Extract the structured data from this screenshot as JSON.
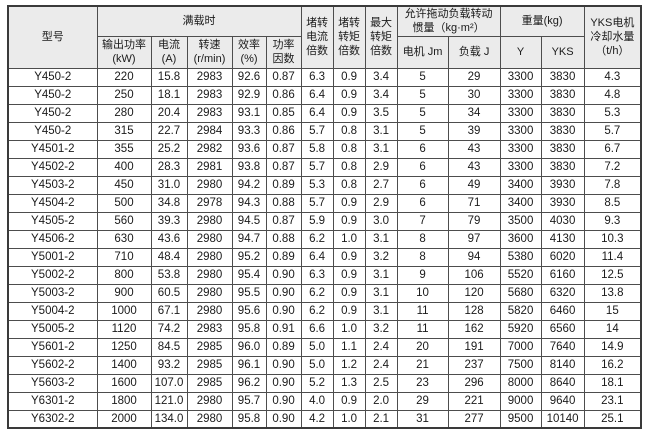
{
  "colors": {
    "header_bg": "#ebebeb",
    "border_color": "#4d4d4d",
    "text_color": "#1a1a1a",
    "row_bg": "#ffffff"
  },
  "table": {
    "header": {
      "model": "型号",
      "full_load_group": "满载时",
      "output_power": "输出功率\n(kW)",
      "current": "电流\n(A)",
      "speed": "转速\n(r/min)",
      "efficiency": "效率\n(%)",
      "power_factor": "功率\n因数",
      "locked_rotor_current_ratio": "堵转\n电流\n倍数",
      "locked_rotor_torque_ratio": "堵转\n转矩\n倍数",
      "max_torque_ratio": "最大\n转矩\n倍数",
      "inertia_group": "允许拖动负载转动\n惯量（kg·m²）",
      "motor_jm": "电机 Jm",
      "load_j": "负载 J",
      "weight_group": "重量(kg)",
      "weight_y": "Y",
      "weight_yks": "YKS",
      "cooling_water": "YKS电机\n冷却水量\n（t/h）"
    },
    "column_keys": [
      "model",
      "output_power_kw",
      "current_a",
      "speed_rpm",
      "efficiency_pct",
      "power_factor",
      "locked_rotor_current_ratio",
      "locked_rotor_torque_ratio",
      "max_torque_ratio",
      "motor_inertia_jm",
      "load_inertia_j",
      "weight_y",
      "weight_yks",
      "cooling_water_tph"
    ],
    "rows": [
      [
        "Y450-2",
        "220",
        "15.8",
        "2983",
        "92.6",
        "0.87",
        "6.3",
        "0.9",
        "3.4",
        "5",
        "29",
        "3300",
        "3830",
        "4.3"
      ],
      [
        "Y450-2",
        "250",
        "18.1",
        "2983",
        "92.9",
        "0.86",
        "6.4",
        "0.9",
        "3.4",
        "5",
        "30",
        "3300",
        "3830",
        "4.8"
      ],
      [
        "Y450-2",
        "280",
        "20.4",
        "2983",
        "93.1",
        "0.85",
        "6.4",
        "0.9",
        "3.5",
        "5",
        "34",
        "3300",
        "3830",
        "5.3"
      ],
      [
        "Y450-2",
        "315",
        "22.7",
        "2984",
        "93.3",
        "0.86",
        "5.7",
        "0.8",
        "3.1",
        "5",
        "39",
        "3300",
        "3830",
        "5.7"
      ],
      [
        "Y4501-2",
        "355",
        "25.2",
        "2982",
        "93.6",
        "0.87",
        "5.8",
        "0.8",
        "3.1",
        "6",
        "43",
        "3300",
        "3830",
        "6.7"
      ],
      [
        "Y4502-2",
        "400",
        "28.3",
        "2981",
        "93.8",
        "0.87",
        "5.7",
        "0.8",
        "2.9",
        "6",
        "43",
        "3300",
        "3830",
        "7.2"
      ],
      [
        "Y4503-2",
        "450",
        "31.0",
        "2980",
        "94.2",
        "0.89",
        "5.3",
        "0.8",
        "2.7",
        "6",
        "49",
        "3400",
        "3930",
        "7.8"
      ],
      [
        "Y4504-2",
        "500",
        "34.8",
        "2978",
        "94.3",
        "0.88",
        "5.7",
        "0.9",
        "2.9",
        "6",
        "71",
        "3400",
        "3930",
        "8.5"
      ],
      [
        "Y4505-2",
        "560",
        "39.3",
        "2980",
        "94.5",
        "0.87",
        "5.9",
        "0.9",
        "3.0",
        "7",
        "79",
        "3500",
        "4030",
        "9.3"
      ],
      [
        "Y4506-2",
        "630",
        "43.6",
        "2980",
        "94.7",
        "0.88",
        "6.2",
        "1.0",
        "3.1",
        "8",
        "97",
        "3600",
        "4130",
        "10.3"
      ],
      [
        "Y5001-2",
        "710",
        "48.4",
        "2980",
        "95.2",
        "0.89",
        "6.4",
        "0.9",
        "3.2",
        "8",
        "94",
        "5380",
        "6020",
        "11.4"
      ],
      [
        "Y5002-2",
        "800",
        "53.8",
        "2980",
        "95.4",
        "0.90",
        "6.3",
        "0.9",
        "3.1",
        "9",
        "106",
        "5520",
        "6160",
        "12.5"
      ],
      [
        "Y5003-2",
        "900",
        "60.5",
        "2980",
        "95.5",
        "0.90",
        "6.2",
        "0.9",
        "3.1",
        "10",
        "120",
        "5680",
        "6320",
        "13.8"
      ],
      [
        "Y5004-2",
        "1000",
        "67.1",
        "2980",
        "95.6",
        "0.90",
        "6.2",
        "0.9",
        "3.1",
        "11",
        "128",
        "5820",
        "6460",
        "15"
      ],
      [
        "Y5005-2",
        "1120",
        "74.2",
        "2983",
        "95.8",
        "0.91",
        "6.6",
        "1.0",
        "3.2",
        "11",
        "162",
        "5920",
        "6560",
        "14"
      ],
      [
        "Y5601-2",
        "1250",
        "84.5",
        "2985",
        "96.0",
        "0.89",
        "5.0",
        "1.1",
        "2.4",
        "20",
        "191",
        "7000",
        "7640",
        "14.9"
      ],
      [
        "Y5602-2",
        "1400",
        "93.2",
        "2985",
        "96.1",
        "0.90",
        "5.0",
        "1.2",
        "2.4",
        "21",
        "237",
        "7500",
        "8140",
        "16.2"
      ],
      [
        "Y5603-2",
        "1600",
        "107.0",
        "2985",
        "96.2",
        "0.90",
        "5.2",
        "1.3",
        "2.5",
        "23",
        "296",
        "8000",
        "8640",
        "18.1"
      ],
      [
        "Y6301-2",
        "1800",
        "121.0",
        "2980",
        "95.7",
        "0.90",
        "4.0",
        "0.9",
        "2.0",
        "29",
        "221",
        "9000",
        "9640",
        "23.1"
      ],
      [
        "Y6302-2",
        "2000",
        "134.0",
        "2980",
        "95.8",
        "0.90",
        "4.2",
        "1.0",
        "2.1",
        "31",
        "277",
        "9500",
        "10140",
        "25.1"
      ]
    ]
  }
}
